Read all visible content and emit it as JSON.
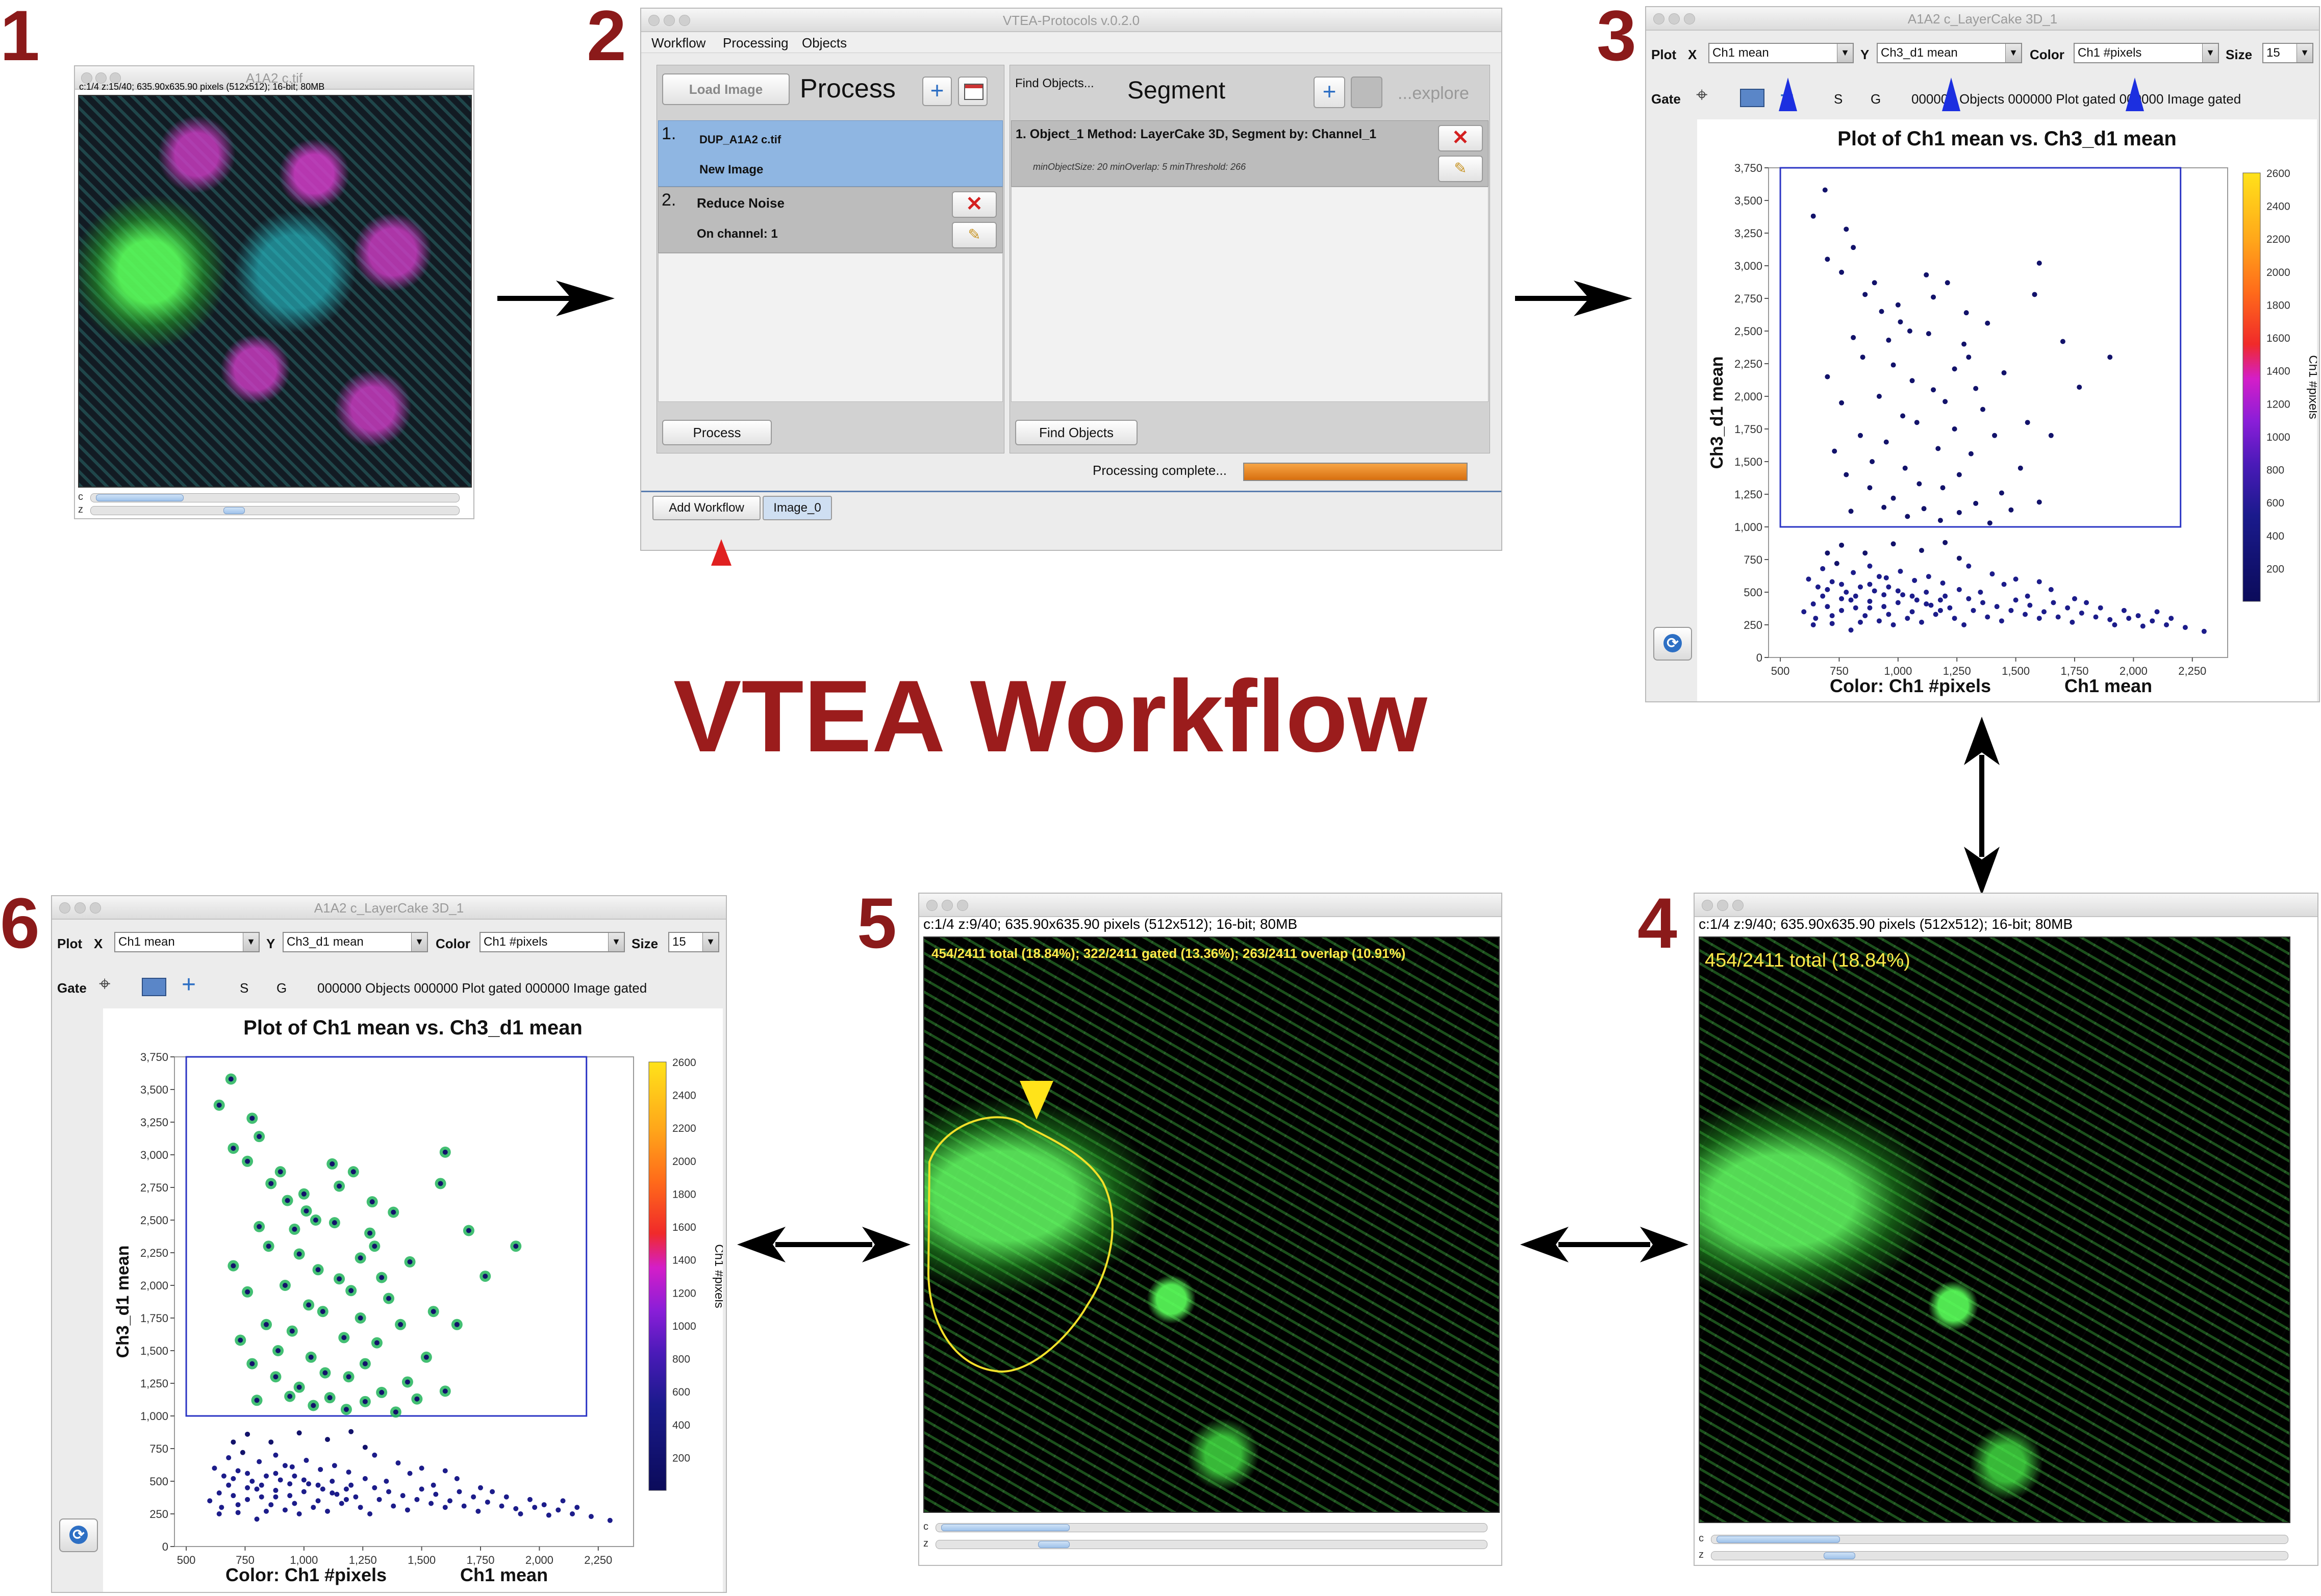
{
  "title": "VTEA Workflow",
  "steps": [
    "1",
    "2",
    "3",
    "4",
    "5",
    "6"
  ],
  "panel1": {
    "window_title": "A1A2 c.tif",
    "info": "c:1/4 z:15/40; 635.90x635.90 pixels (512x512); 16-bit; 80MB",
    "scroll_c": "c",
    "scroll_z": "z"
  },
  "panel2": {
    "window_title": "VTEA-Protocols v.0.2.0",
    "menu": [
      "Workflow",
      "Processing",
      "Objects"
    ],
    "load_image": "Load Image",
    "process_heading": "Process",
    "find_objects_small": "Find Objects...",
    "segment_heading": "Segment",
    "explore": "...explore",
    "proc_items": [
      {
        "num": "1.",
        "line1": "DUP_A1A2 c.tif",
        "line2": "New Image"
      },
      {
        "num": "2.",
        "line1": "Reduce Noise",
        "line2": "On channel: 1"
      }
    ],
    "segment_item": "1. Object_1 Method: LayerCake 3D, Segment by: Channel_1",
    "segment_params": "minObjectSize: 20 minOverlap: 5 minThreshold: 266",
    "process_button": "Process",
    "find_objects_button": "Find Objects",
    "status": "Processing complete...",
    "progress": 1.0,
    "tabs": [
      "Add Workflow",
      "Image_0"
    ]
  },
  "explorer": {
    "window_title_3": "A1A2 c_LayerCake 3D_1",
    "window_title_6": "A1A2 c_LayerCake 3D_1",
    "plot_label": "Plot",
    "x_label": "X",
    "x_value": "Ch1 mean",
    "y_label": "Y",
    "y_value": "Ch3_d1 mean",
    "color_label": "Color",
    "color_value": "Ch1 #pixels",
    "size_label": "Size",
    "size_value": "15",
    "gate_label": "Gate",
    "s_label": "S",
    "g_label": "G",
    "status_3": "000000 Objects 000000 Plot gated 000000 Image gated",
    "status_6": "000000 Objects 000000 Plot gated 000000 Image gated",
    "plot_title": "Plot of Ch1 mean vs. Ch3_d1 mean",
    "x_axis_label": "Ch1 mean",
    "y_axis_label": "Ch3_d1 mean",
    "color_axis_label": "Color: Ch1 #pixels",
    "colorbar_label": "Ch1 #pixels",
    "x_ticks": [
      "500",
      "750",
      "1,000",
      "1,250",
      "1,500",
      "1,750",
      "2,000",
      "2,250"
    ],
    "y_ticks": [
      "0",
      "250",
      "500",
      "750",
      "1,000",
      "1,250",
      "1,500",
      "1,750",
      "2,000",
      "2,250",
      "2,500",
      "2,750",
      "3,000",
      "3,250",
      "3,500",
      "3,750"
    ],
    "cb_ticks": [
      "200",
      "400",
      "600",
      "800",
      "1000",
      "1200",
      "1400",
      "1600",
      "1800",
      "2000",
      "2200",
      "2400",
      "2600"
    ]
  },
  "panel4": {
    "info": "c:1/4 z:9/40; 635.90x635.90 pixels (512x512); 16-bit; 80MB",
    "overlay": "454/2411 total (18.84%)",
    "scroll_c": "c",
    "scroll_z": "z"
  },
  "panel5": {
    "info": "c:1/4 z:9/40; 635.90x635.90 pixels (512x512); 16-bit; 80MB",
    "overlay": "454/2411 total (18.84%); 322/2411 gated (13.36%); 263/2411 overlap (10.91%)",
    "scroll_c": "c",
    "scroll_z": "z"
  },
  "chart_data": [
    {
      "type": "scatter",
      "title": "Plot of Ch1 mean vs. Ch3_d1 mean",
      "xlabel": "Ch1 mean",
      "ylabel": "Ch3_d1 mean",
      "color_by": "Ch1 #pixels",
      "xlim": [
        450,
        2400
      ],
      "ylim": [
        0,
        3750
      ],
      "colorbar_range": [
        0,
        2600
      ],
      "gate": {
        "x": [
          500,
          2200
        ],
        "y": [
          1000,
          3750
        ]
      },
      "points": [
        [
          690,
          3580
        ],
        [
          640,
          3380
        ],
        [
          780,
          3280
        ],
        [
          810,
          3140
        ],
        [
          700,
          3050
        ],
        [
          760,
          2950
        ],
        [
          900,
          2870
        ],
        [
          860,
          2780
        ],
        [
          1000,
          2700
        ],
        [
          930,
          2650
        ],
        [
          1050,
          2500
        ],
        [
          1130,
          2480
        ],
        [
          1280,
          2400
        ],
        [
          1300,
          2300
        ],
        [
          980,
          2240
        ],
        [
          1060,
          2120
        ],
        [
          1150,
          2050
        ],
        [
          920,
          2000
        ],
        [
          1200,
          1960
        ],
        [
          1360,
          1900
        ],
        [
          1020,
          1850
        ],
        [
          1080,
          1800
        ],
        [
          1240,
          1750
        ],
        [
          1410,
          1700
        ],
        [
          950,
          1650
        ],
        [
          1170,
          1600
        ],
        [
          1310,
          1560
        ],
        [
          890,
          1500
        ],
        [
          1030,
          1450
        ],
        [
          1260,
          1400
        ],
        [
          1090,
          1330
        ],
        [
          1190,
          1300
        ],
        [
          1440,
          1260
        ],
        [
          980,
          1220
        ],
        [
          1330,
          1180
        ],
        [
          1110,
          1140
        ],
        [
          1260,
          1110
        ],
        [
          1040,
          1080
        ],
        [
          1180,
          1050
        ],
        [
          1390,
          1030
        ],
        [
          1580,
          2780
        ],
        [
          1700,
          2420
        ],
        [
          1600,
          3020
        ],
        [
          1770,
          2070
        ],
        [
          1550,
          1800
        ],
        [
          1650,
          1700
        ],
        [
          1900,
          2300
        ],
        [
          1520,
          1450
        ],
        [
          1600,
          1190
        ],
        [
          1480,
          1130
        ],
        [
          850,
          2300
        ],
        [
          810,
          2450
        ],
        [
          760,
          1950
        ],
        [
          840,
          1700
        ],
        [
          730,
          1580
        ],
        [
          780,
          1400
        ],
        [
          880,
          1300
        ],
        [
          940,
          1150
        ],
        [
          800,
          1120
        ],
        [
          700,
          2150
        ],
        [
          1210,
          2870
        ],
        [
          1120,
          2930
        ],
        [
          1290,
          2640
        ],
        [
          1380,
          2560
        ],
        [
          1450,
          2180
        ],
        [
          1330,
          2060
        ],
        [
          1010,
          2570
        ],
        [
          1150,
          2760
        ],
        [
          960,
          2430
        ],
        [
          1240,
          2210
        ],
        [
          620,
          600
        ],
        [
          700,
          520
        ],
        [
          760,
          450
        ],
        [
          820,
          380
        ],
        [
          880,
          560
        ],
        [
          940,
          480
        ],
        [
          1000,
          420
        ],
        [
          1060,
          350
        ],
        [
          1120,
          500
        ],
        [
          1180,
          440
        ],
        [
          650,
          300
        ],
        [
          720,
          260
        ],
        [
          800,
          210
        ],
        [
          860,
          320
        ],
        [
          920,
          280
        ],
        [
          980,
          250
        ],
        [
          1040,
          300
        ],
        [
          1100,
          270
        ],
        [
          1160,
          330
        ],
        [
          1220,
          380
        ],
        [
          680,
          680
        ],
        [
          740,
          720
        ],
        [
          810,
          650
        ],
        [
          880,
          700
        ],
        [
          950,
          610
        ],
        [
          1010,
          660
        ],
        [
          1070,
          590
        ],
        [
          1130,
          620
        ],
        [
          1190,
          570
        ],
        [
          1260,
          520
        ],
        [
          1300,
          450
        ],
        [
          1360,
          420
        ],
        [
          1420,
          390
        ],
        [
          1480,
          360
        ],
        [
          1540,
          330
        ],
        [
          1600,
          300
        ],
        [
          1660,
          420
        ],
        [
          1720,
          380
        ],
        [
          1780,
          340
        ],
        [
          1840,
          310
        ],
        [
          1900,
          290
        ],
        [
          1960,
          360
        ],
        [
          2020,
          320
        ],
        [
          2080,
          280
        ],
        [
          2140,
          250
        ],
        [
          1350,
          500
        ],
        [
          1450,
          560
        ],
        [
          1550,
          470
        ],
        [
          1650,
          520
        ],
        [
          1750,
          450
        ],
        [
          640,
          410
        ],
        [
          700,
          390
        ],
        [
          760,
          360
        ],
        [
          820,
          470
        ],
        [
          880,
          430
        ],
        [
          940,
          390
        ],
        [
          1000,
          510
        ],
        [
          1060,
          470
        ],
        [
          1120,
          410
        ],
        [
          1180,
          360
        ],
        [
          660,
          540
        ],
        [
          720,
          580
        ],
        [
          780,
          500
        ],
        [
          840,
          540
        ],
        [
          900,
          510
        ],
        [
          960,
          540
        ],
        [
          1020,
          480
        ],
        [
          1080,
          440
        ],
        [
          1140,
          400
        ],
        [
          1200,
          470
        ],
        [
          600,
          350
        ],
        [
          640,
          250
        ],
        [
          680,
          470
        ],
        [
          720,
          320
        ],
        [
          760,
          560
        ],
        [
          800,
          440
        ],
        [
          840,
          270
        ],
        [
          880,
          380
        ],
        [
          920,
          620
        ],
        [
          960,
          330
        ],
        [
          1240,
          300
        ],
        [
          1280,
          250
        ],
        [
          1320,
          360
        ],
        [
          1380,
          310
        ],
        [
          1440,
          280
        ],
        [
          1500,
          440
        ],
        [
          1560,
          400
        ],
        [
          1620,
          350
        ],
        [
          1680,
          310
        ],
        [
          1740,
          270
        ],
        [
          1800,
          420
        ],
        [
          1860,
          380
        ],
        [
          1920,
          250
        ],
        [
          1980,
          300
        ],
        [
          2040,
          240
        ],
        [
          2100,
          350
        ],
        [
          2160,
          300
        ],
        [
          2220,
          230
        ],
        [
          2300,
          200
        ],
        [
          1260,
          760
        ],
        [
          1100,
          820
        ],
        [
          980,
          870
        ],
        [
          860,
          800
        ],
        [
          760,
          860
        ],
        [
          700,
          800
        ],
        [
          1200,
          880
        ],
        [
          1300,
          700
        ],
        [
          1400,
          640
        ],
        [
          1500,
          600
        ],
        [
          1600,
          580
        ]
      ]
    }
  ]
}
